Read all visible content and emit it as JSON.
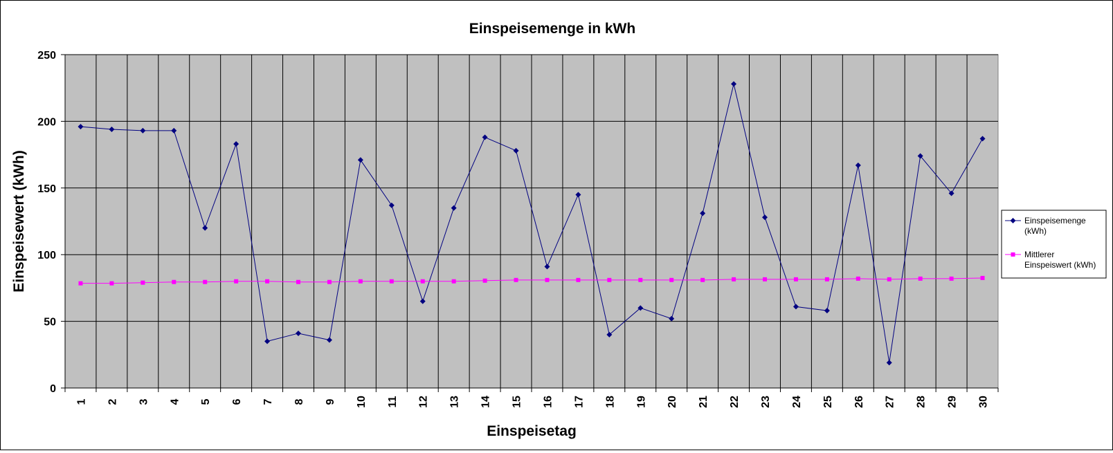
{
  "chart_data": {
    "type": "line",
    "title": "Einspeisemenge in kWh",
    "xlabel": "Einspeisetag",
    "ylabel": "Einspeisewert  (kWh)",
    "ylim": [
      0,
      250
    ],
    "yticks": [
      "0",
      "50",
      "100",
      "150",
      "200",
      "250"
    ],
    "categories": [
      "1",
      "2",
      "3",
      "4",
      "5",
      "6",
      "7",
      "8",
      "9",
      "10",
      "11",
      "12",
      "13",
      "14",
      "15",
      "16",
      "17",
      "18",
      "19",
      "20",
      "21",
      "22",
      "23",
      "24",
      "25",
      "26",
      "27",
      "28",
      "29",
      "30"
    ],
    "grid": true,
    "legend_position": "right",
    "plot_background": "#c0c0c0",
    "series": [
      {
        "name": "Einspeisemenge (kWh)",
        "legend_lines": [
          "Einspeisemenge",
          "(kWh)"
        ],
        "color": "#000080",
        "marker": "diamond",
        "values": [
          196,
          194,
          193,
          193,
          120,
          183,
          35,
          41,
          36,
          171,
          137,
          65,
          135,
          188,
          178,
          91,
          145,
          40,
          60,
          52,
          131,
          228,
          128,
          61,
          58,
          167,
          19,
          174,
          146,
          187
        ]
      },
      {
        "name": "Mittlerer Einspeiswert (kWh)",
        "legend_lines": [
          "Mittlerer",
          "Einspeiswert (kWh)"
        ],
        "color": "#ff00ff",
        "marker": "square",
        "values": [
          78.5,
          78.5,
          79,
          79.5,
          79.5,
          80,
          80,
          79.5,
          79.5,
          80,
          80,
          80,
          80,
          80.5,
          81,
          81,
          81,
          81,
          81,
          81,
          81,
          81.5,
          81.5,
          81.5,
          81.5,
          82,
          81.5,
          82,
          82,
          82.5
        ]
      }
    ]
  }
}
